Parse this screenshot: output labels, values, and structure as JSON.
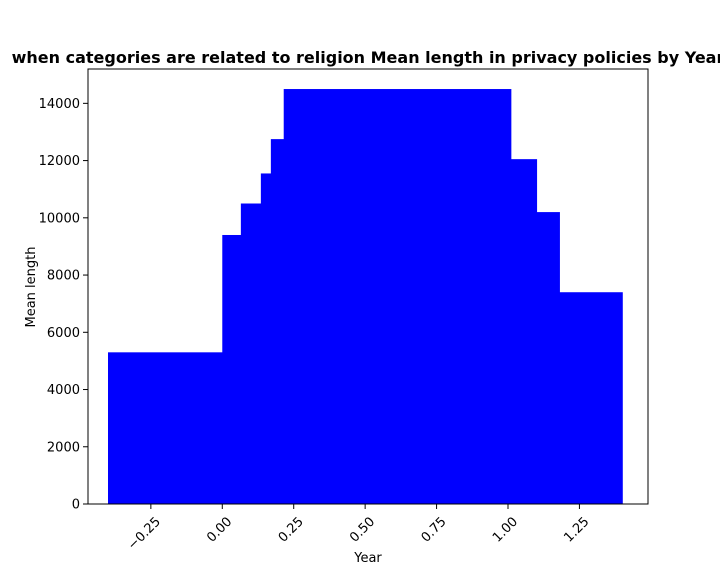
{
  "chart_data": {
    "type": "bar",
    "title": "when categories are related to religion Mean length in privacy policies by Year",
    "xlabel": "Year",
    "ylabel": "Mean length",
    "xlim": [
      -0.47,
      1.49
    ],
    "ylim": [
      0,
      15200
    ],
    "xticks": [
      -0.25,
      0.0,
      0.25,
      0.5,
      0.75,
      1.0,
      1.25
    ],
    "xtick_labels": [
      "−0.25",
      "0.00",
      "0.25",
      "0.50",
      "0.75",
      "1.00",
      "1.25"
    ],
    "yticks": [
      0,
      2000,
      4000,
      6000,
      8000,
      10000,
      12000,
      14000
    ],
    "ytick_labels": [
      "0",
      "2000",
      "4000",
      "6000",
      "8000",
      "10000",
      "12000",
      "14000"
    ],
    "grid": false,
    "bar_color": "#0000ff",
    "bars": [
      {
        "x0": -0.4,
        "x1": 0.0,
        "value": 5300
      },
      {
        "x0": 0.0,
        "x1": 0.065,
        "value": 9400
      },
      {
        "x0": 0.065,
        "x1": 0.135,
        "value": 10500
      },
      {
        "x0": 0.135,
        "x1": 0.17,
        "value": 11550
      },
      {
        "x0": 0.17,
        "x1": 0.215,
        "value": 12750
      },
      {
        "x0": 0.215,
        "x1": 1.01,
        "value": 14500
      },
      {
        "x0": 1.01,
        "x1": 1.1,
        "value": 12050
      },
      {
        "x0": 1.1,
        "x1": 1.18,
        "value": 10200
      },
      {
        "x0": 1.18,
        "x1": 1.4,
        "value": 7400
      }
    ]
  }
}
